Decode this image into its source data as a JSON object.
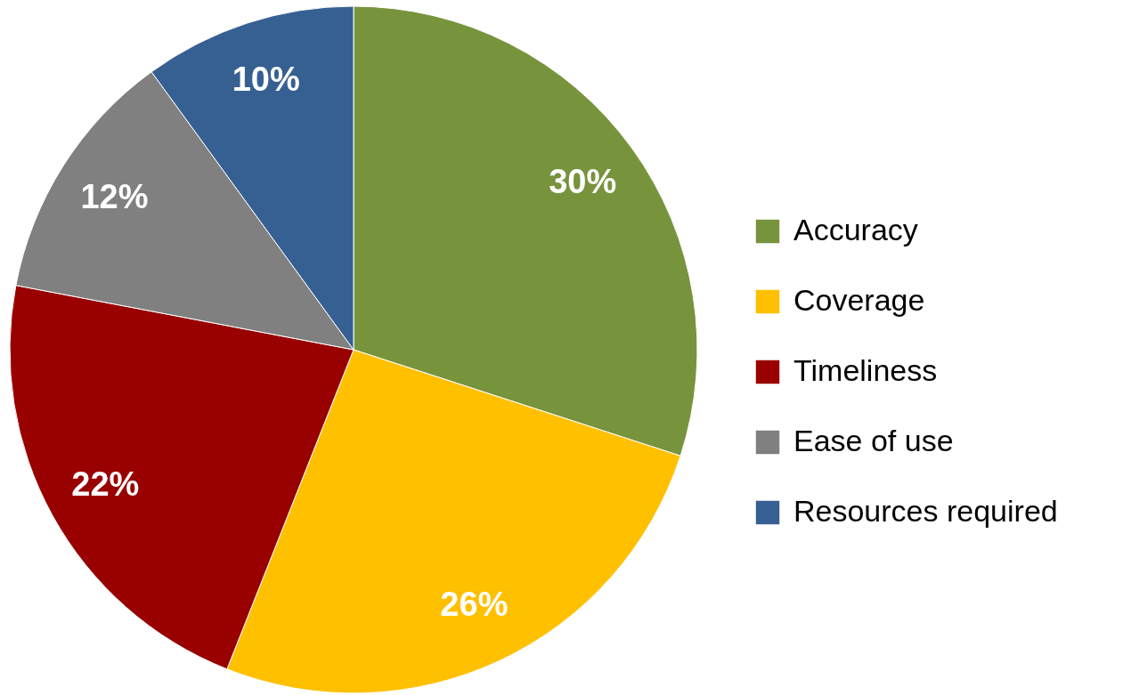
{
  "chart_data": {
    "type": "pie",
    "categories": [
      "Accuracy",
      "Coverage",
      "Timeliness",
      "Ease of use",
      "Resources required"
    ],
    "values": [
      30,
      26,
      22,
      12,
      10
    ],
    "colors": [
      "#77933c",
      "#ffc000",
      "#990000",
      "#808080",
      "#376092"
    ],
    "value_labels": [
      "30%",
      "26%",
      "22%",
      "12%",
      "10%"
    ],
    "legend": "right"
  }
}
